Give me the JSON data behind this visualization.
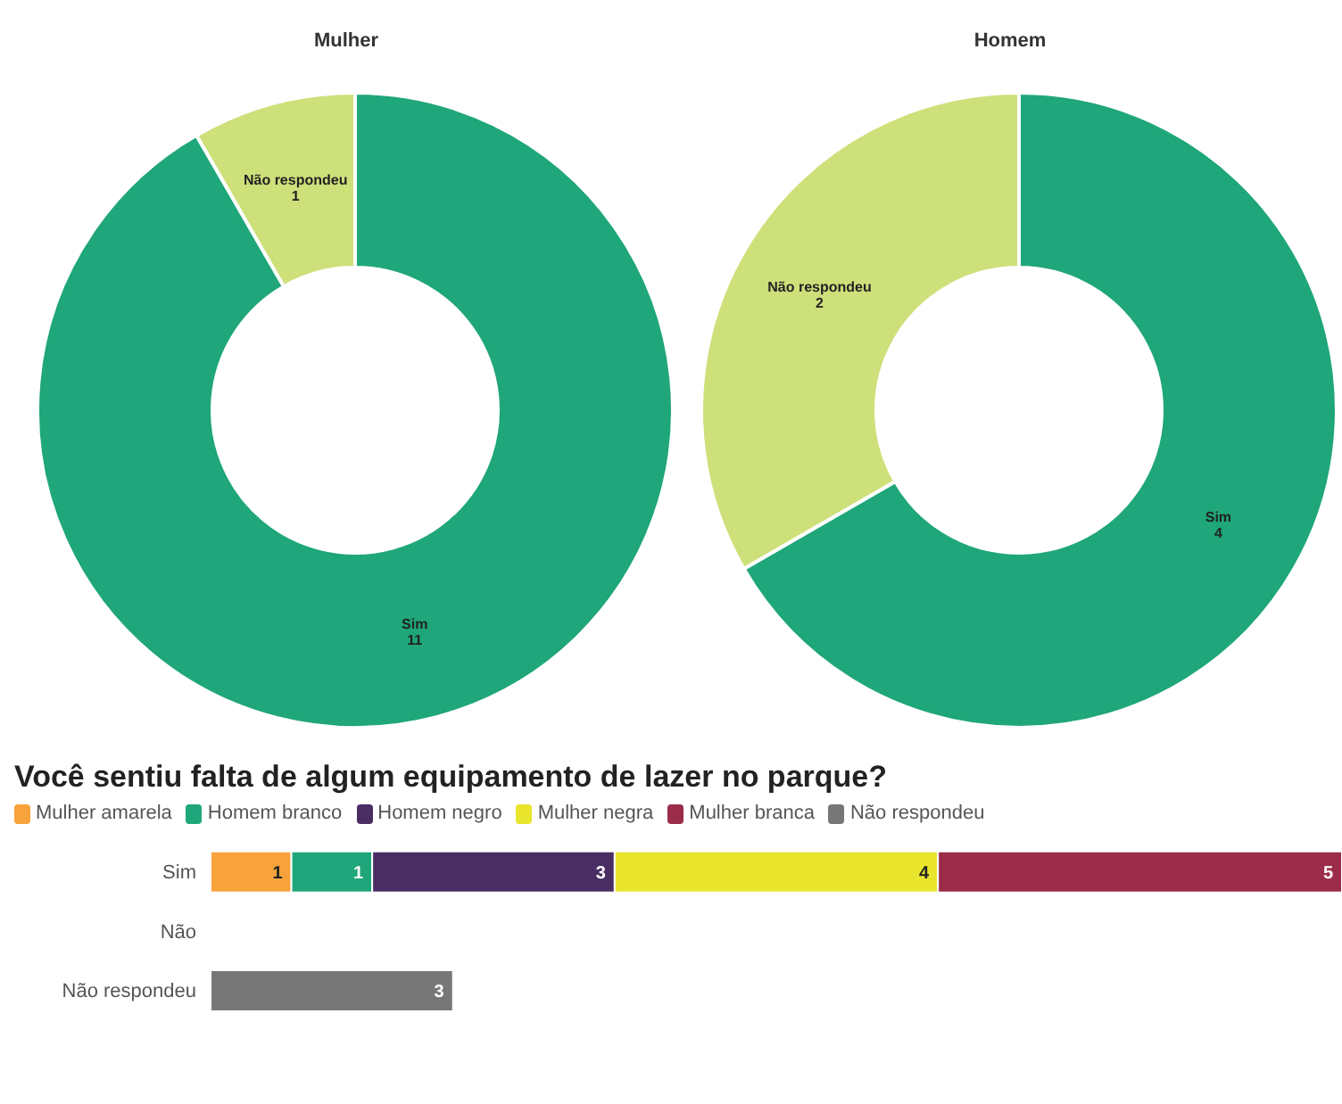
{
  "chart_data": [
    {
      "type": "donut",
      "title": "Mulher",
      "categories": [
        "Não respondeu",
        "Sim"
      ],
      "values": [
        1,
        11
      ],
      "colors": [
        "#cde07a",
        "#1fa67a"
      ],
      "data_labels": true,
      "legend": false
    },
    {
      "type": "donut",
      "title": "Homem",
      "categories": [
        "Não respondeu",
        "Sim"
      ],
      "values": [
        2,
        4
      ],
      "colors": [
        "#cde07a",
        "#1fa67a"
      ],
      "data_labels": true,
      "legend": false
    },
    {
      "type": "bar",
      "orientation": "horizontal",
      "stacked": true,
      "title": "Você sentiu falta de algum equipamento de lazer no parque?",
      "categories": [
        "Sim",
        "Não",
        "Não respondeu"
      ],
      "legend": "top left",
      "data_labels": true,
      "tick_labels": "y",
      "series": [
        {
          "name": "Mulher amarela",
          "color": "#f7a23b",
          "values": [
            1,
            null,
            null
          ]
        },
        {
          "name": "Homem branco",
          "color": "#1fa67a",
          "values": [
            1,
            null,
            null
          ]
        },
        {
          "name": "Homem negro",
          "color": "#4a2d63",
          "values": [
            3,
            null,
            null
          ]
        },
        {
          "name": "Mulher negra",
          "color": "#e8e52c",
          "values": [
            4,
            null,
            null
          ]
        },
        {
          "name": "Mulher branca",
          "color": "#9b2c4a",
          "values": [
            5,
            null,
            null
          ]
        },
        {
          "name": "Não respondeu",
          "color": "#777777",
          "values": [
            null,
            null,
            3
          ]
        }
      ]
    }
  ]
}
